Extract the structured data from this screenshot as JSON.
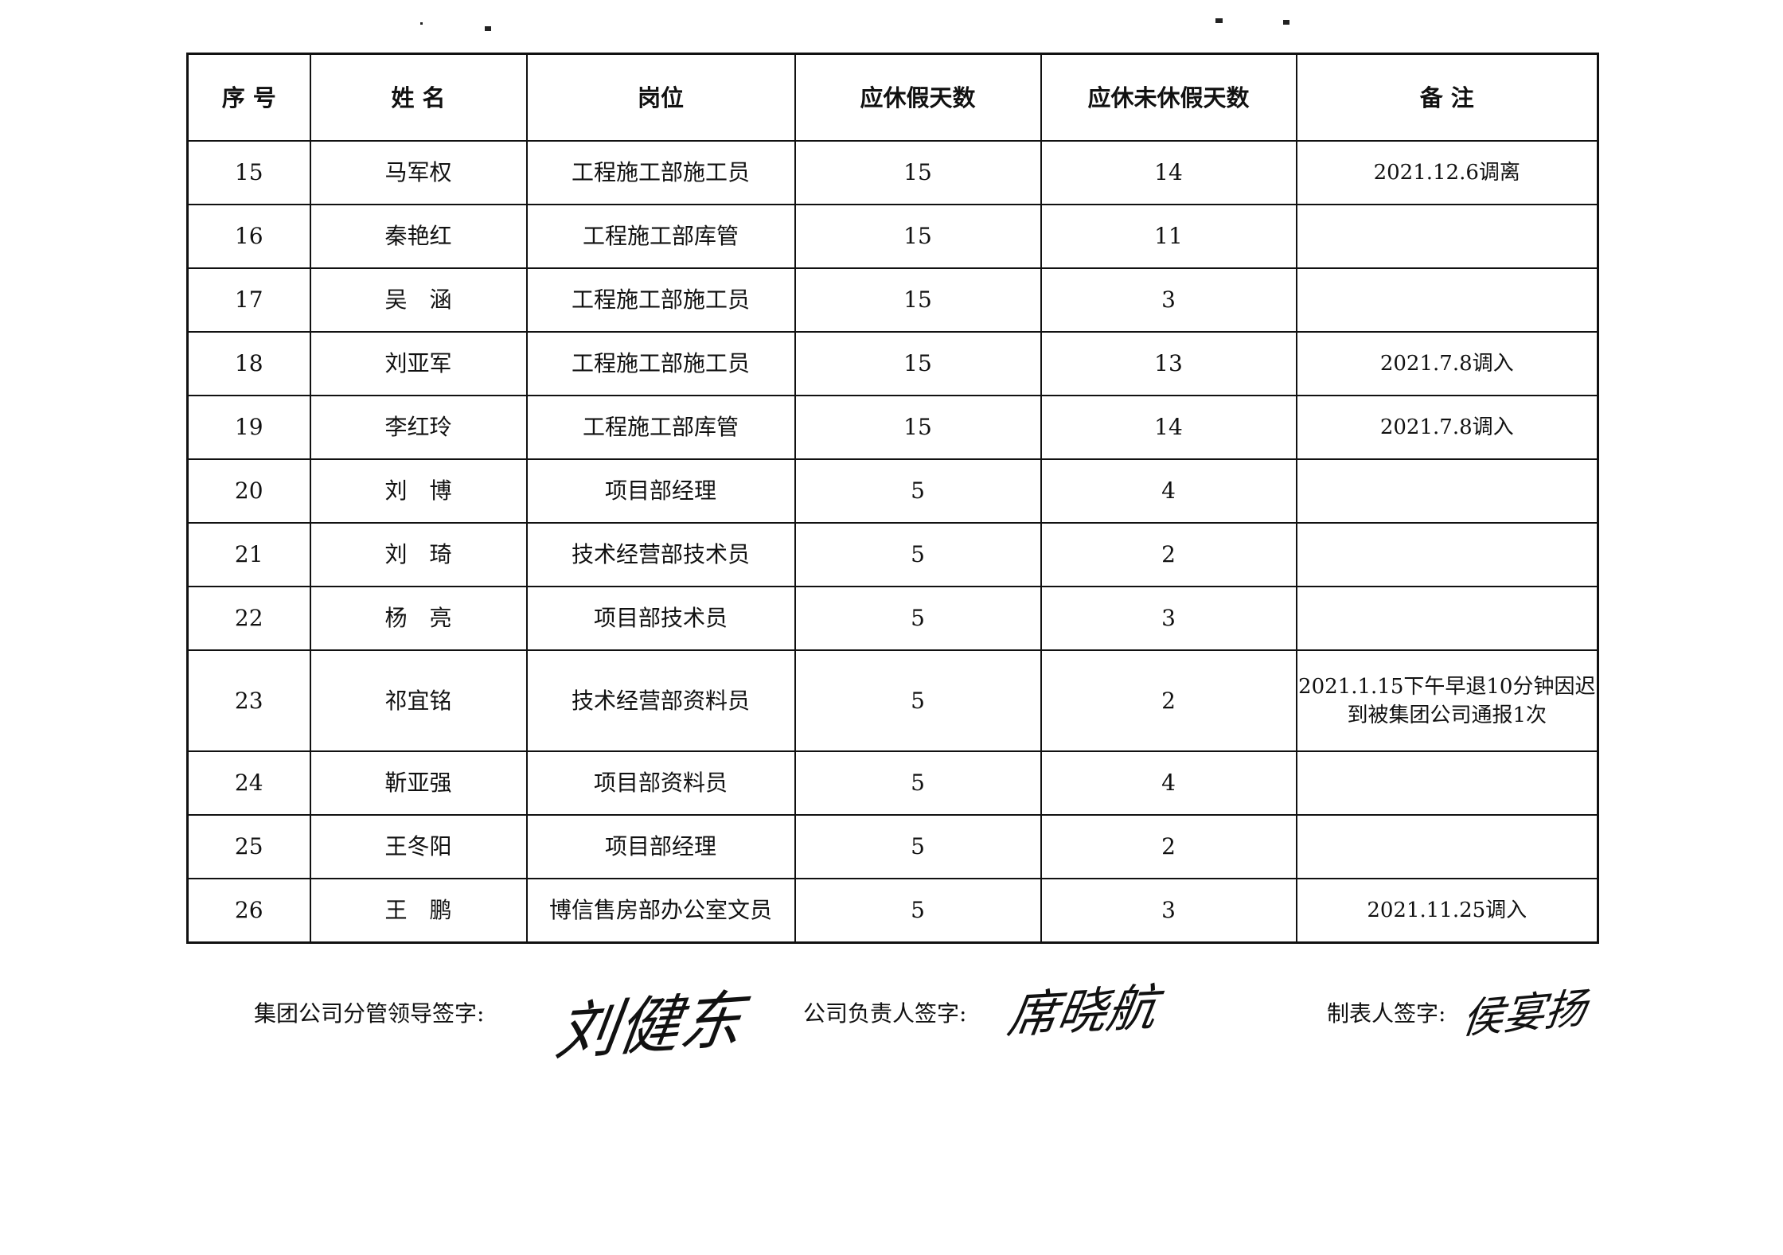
{
  "table": {
    "headers": [
      "序 号",
      "姓 名",
      "岗位",
      "应休假天数",
      "应休未休假天数",
      "备  注"
    ],
    "rows": [
      {
        "no": "15",
        "name": "马军权",
        "position": "工程施工部施工员",
        "entitled": "15",
        "unused": "14",
        "note": "2021.12.6调离"
      },
      {
        "no": "16",
        "name": "秦艳红",
        "position": "工程施工部库管",
        "entitled": "15",
        "unused": "11",
        "note": ""
      },
      {
        "no": "17",
        "name": "吴　涵",
        "position": "工程施工部施工员",
        "entitled": "15",
        "unused": "3",
        "note": ""
      },
      {
        "no": "18",
        "name": "刘亚军",
        "position": "工程施工部施工员",
        "entitled": "15",
        "unused": "13",
        "note": "2021.7.8调入"
      },
      {
        "no": "19",
        "name": "李红玲",
        "position": "工程施工部库管",
        "entitled": "15",
        "unused": "14",
        "note": "2021.7.8调入"
      },
      {
        "no": "20",
        "name": "刘　博",
        "position": "项目部经理",
        "entitled": "5",
        "unused": "4",
        "note": ""
      },
      {
        "no": "21",
        "name": "刘　琦",
        "position": "技术经营部技术员",
        "entitled": "5",
        "unused": "2",
        "note": ""
      },
      {
        "no": "22",
        "name": "杨　亮",
        "position": "项目部技术员",
        "entitled": "5",
        "unused": "3",
        "note": ""
      },
      {
        "no": "23",
        "name": "祁宜铭",
        "position": "技术经营部资料员",
        "entitled": "5",
        "unused": "2",
        "note": "2021.1.15下午早退10分钟因迟到被集团公司通报1次"
      },
      {
        "no": "24",
        "name": "靳亚强",
        "position": "项目部资料员",
        "entitled": "5",
        "unused": "4",
        "note": ""
      },
      {
        "no": "25",
        "name": "王冬阳",
        "position": "项目部经理",
        "entitled": "5",
        "unused": "2",
        "note": ""
      },
      {
        "no": "26",
        "name": "王　鹏",
        "position": "博信售房部办公室文员",
        "entitled": "5",
        "unused": "3",
        "note": "2021.11.25调入"
      }
    ]
  },
  "signatures": {
    "group_leader_label": "集团公司分管领导签字:",
    "group_leader_signature": "刘健东",
    "company_head_label": "公司负责人签字:",
    "company_head_signature": "席晓航",
    "preparer_label": "制表人签字:",
    "preparer_signature": "侯宴扬"
  }
}
